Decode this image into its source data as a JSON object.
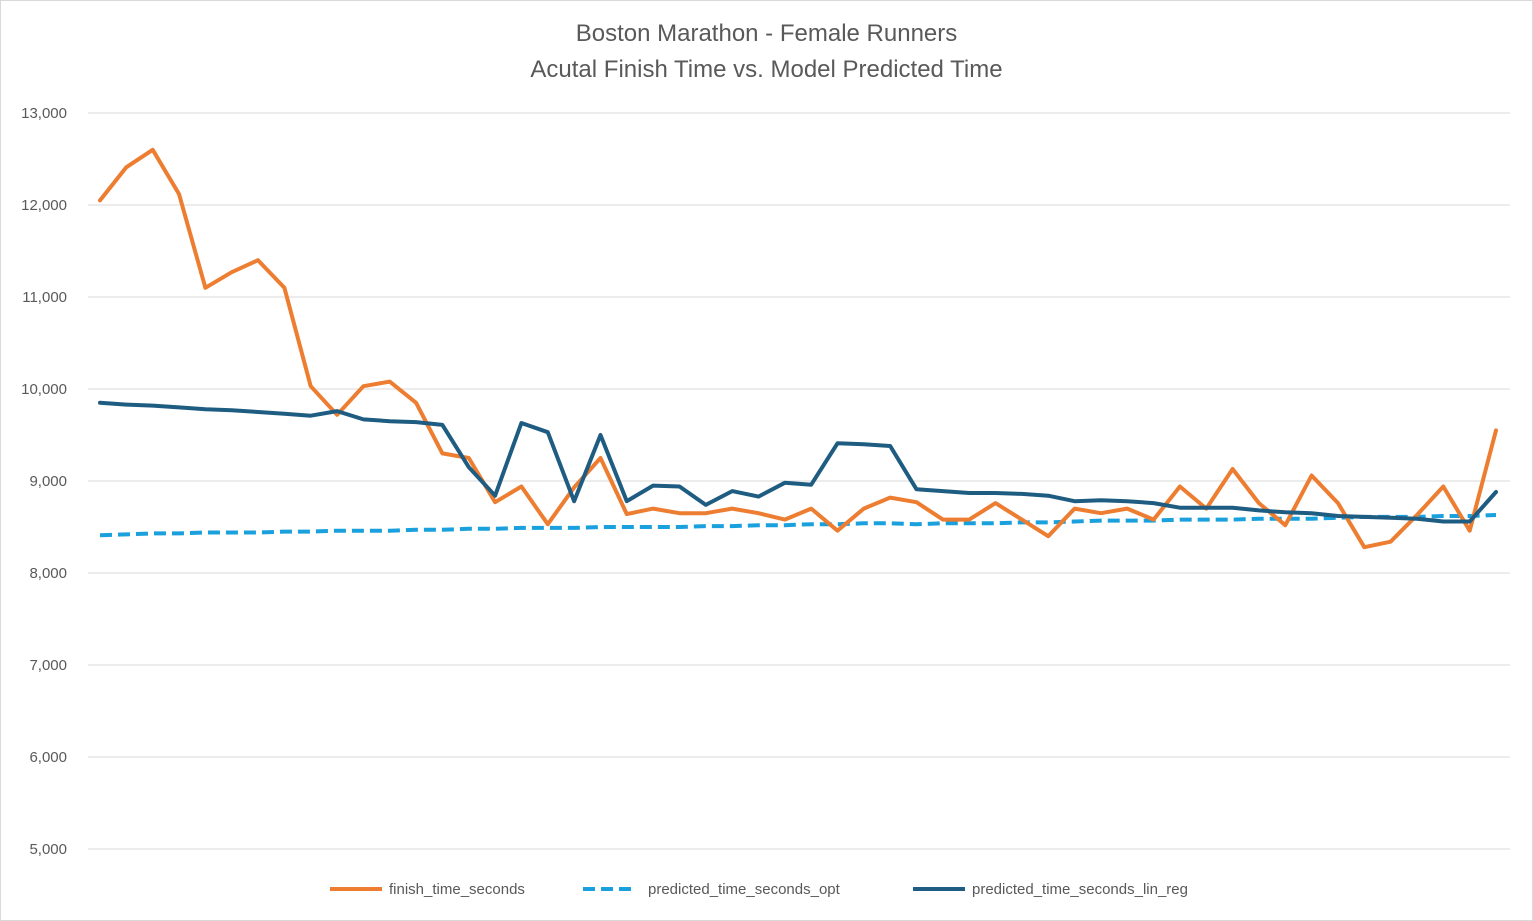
{
  "chart_data": {
    "type": "line",
    "title": "Boston Marathon - Female Runners",
    "subtitle": "Acutal Finish Time vs. Model Predicted Time",
    "xlabel": "",
    "ylabel": "",
    "ylim": [
      5000,
      13000
    ],
    "yticks": [
      5000,
      6000,
      7000,
      8000,
      9000,
      10000,
      11000,
      12000,
      13000
    ],
    "ytick_labels": [
      "5,000",
      "6,000",
      "7,000",
      "8,000",
      "9,000",
      "10,000",
      "11,000",
      "12,000",
      "13,000"
    ],
    "x": [
      1,
      2,
      3,
      4,
      5,
      6,
      7,
      8,
      9,
      10,
      11,
      12,
      13,
      14,
      15,
      16,
      17,
      18,
      19,
      20,
      21,
      22,
      23,
      24,
      25,
      26,
      27,
      28,
      29,
      30,
      31,
      32,
      33,
      34,
      35,
      36,
      37,
      38,
      39,
      40,
      41,
      42,
      43,
      44,
      45,
      46,
      47,
      48,
      49,
      50,
      51,
      52,
      53,
      54
    ],
    "grid": true,
    "legend_position": "bottom",
    "series": [
      {
        "name": "finish_time_seconds",
        "color": "#ed7d31",
        "style": "solid",
        "values": [
          12050,
          12410,
          12600,
          12120,
          11100,
          11270,
          11400,
          11100,
          10030,
          9720,
          10030,
          10080,
          9850,
          9300,
          9250,
          8770,
          8940,
          8530,
          8930,
          9250,
          8640,
          8700,
          8650,
          8650,
          8700,
          8650,
          8580,
          8700,
          8460,
          8700,
          8820,
          8770,
          8580,
          8580,
          8760,
          8580,
          8400,
          8700,
          8650,
          8700,
          8580,
          8940,
          8700,
          9130,
          8760,
          8520,
          9060,
          8760,
          8280,
          8340,
          8630,
          8940,
          8460,
          9550
        ]
      },
      {
        "name": "predicted_time_seconds_opt",
        "color": "#1aa0dc",
        "style": "dashed",
        "values": [
          8410,
          8420,
          8430,
          8430,
          8440,
          8440,
          8440,
          8450,
          8450,
          8460,
          8460,
          8460,
          8470,
          8470,
          8480,
          8480,
          8490,
          8490,
          8490,
          8500,
          8500,
          8500,
          8500,
          8510,
          8510,
          8520,
          8520,
          8530,
          8530,
          8540,
          8540,
          8530,
          8540,
          8540,
          8540,
          8550,
          8550,
          8560,
          8570,
          8570,
          8570,
          8580,
          8580,
          8580,
          8590,
          8590,
          8590,
          8600,
          8610,
          8610,
          8610,
          8620,
          8620,
          8630
        ]
      },
      {
        "name": "predicted_time_seconds_lin_reg",
        "color": "#1f5c82",
        "style": "solid",
        "values": [
          9850,
          9830,
          9820,
          9800,
          9780,
          9770,
          9750,
          9730,
          9710,
          9760,
          9670,
          9650,
          9640,
          9610,
          9150,
          8840,
          9630,
          9530,
          8780,
          9500,
          8780,
          8950,
          8940,
          8740,
          8890,
          8830,
          8980,
          8960,
          9410,
          9400,
          9380,
          8910,
          8890,
          8870,
          8870,
          8860,
          8840,
          8780,
          8790,
          8780,
          8760,
          8710,
          8710,
          8710,
          8680,
          8660,
          8650,
          8620,
          8610,
          8600,
          8590,
          8560,
          8560,
          8880
        ]
      }
    ]
  }
}
